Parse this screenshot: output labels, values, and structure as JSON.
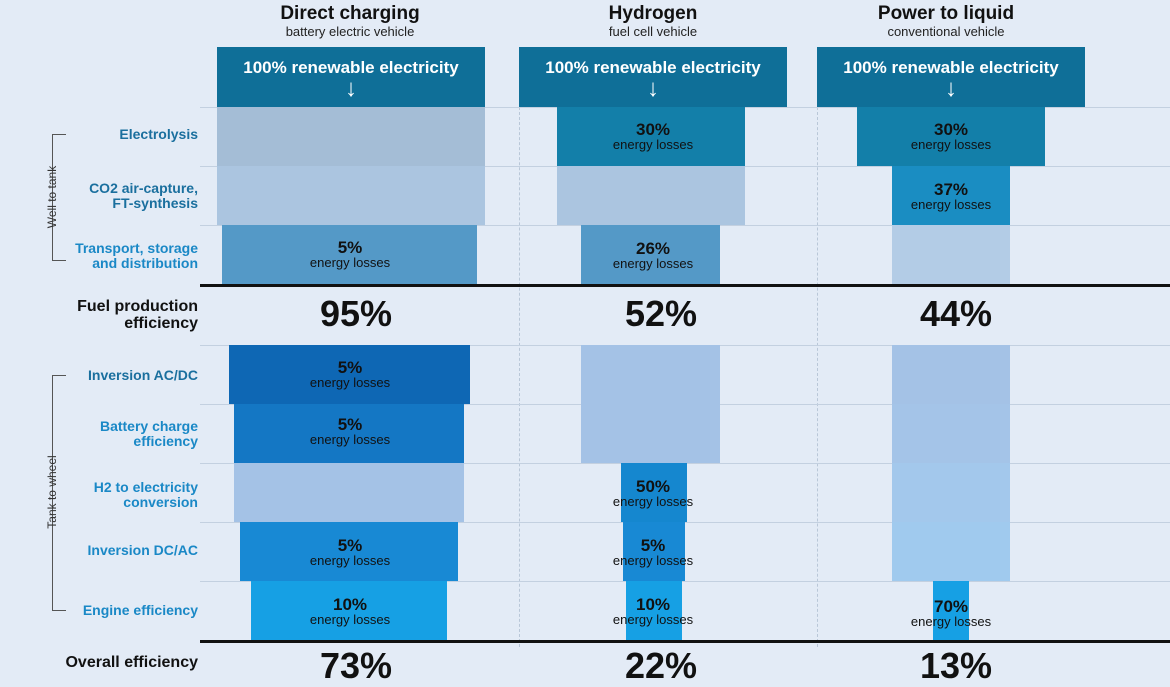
{
  "columns": [
    {
      "title": "Direct charging",
      "subtitle": "battery electric vehicle",
      "header": "100% renewable electricity",
      "fuel_eff": "95%",
      "overall_eff": "73%"
    },
    {
      "title": "Hydrogen",
      "subtitle": "fuel cell vehicle",
      "header": "100% renewable electricity",
      "fuel_eff": "52%",
      "overall_eff": "22%"
    },
    {
      "title": "Power to liquid",
      "subtitle": "conventional vehicle",
      "header": "100% renewable electricity",
      "fuel_eff": "44%",
      "overall_eff": "13%"
    }
  ],
  "arrow": "↓",
  "energy_losses": "energy losses",
  "stages": {
    "well_to_tank": "Well to tank",
    "tank_to_wheel": "Tank to wheel"
  },
  "rows": {
    "electrolysis": "Electrolysis",
    "co2_1": "CO2 air-capture,",
    "co2_2": "FT-synthesis",
    "transport_1": "Transport, storage",
    "transport_2": "and distribution",
    "inversion_acdc": "Inversion AC/DC",
    "battery_1": "Battery charge",
    "battery_2": "efficiency",
    "h2_1": "H2 to electricity",
    "h2_2": "conversion",
    "inversion_dcac": "Inversion DC/AC",
    "engine": "Engine efficiency"
  },
  "fuel_label_1": "Fuel production",
  "fuel_label_2": "efficiency",
  "overall_label": "Overall efficiency",
  "losses": {
    "direct": {
      "transport": "5%",
      "inversion_acdc": "5%",
      "battery": "5%",
      "inversion_dcac": "5%",
      "engine": "10%"
    },
    "hydrogen": {
      "electrolysis": "30%",
      "transport": "26%",
      "h2": "50%",
      "inversion_dcac": "5%",
      "engine": "10%"
    },
    "ptl": {
      "electrolysis": "30%",
      "co2": "37%",
      "engine": "70%"
    }
  },
  "colors": {
    "header": "#0f6f98",
    "background": "#e3ebf6"
  }
}
